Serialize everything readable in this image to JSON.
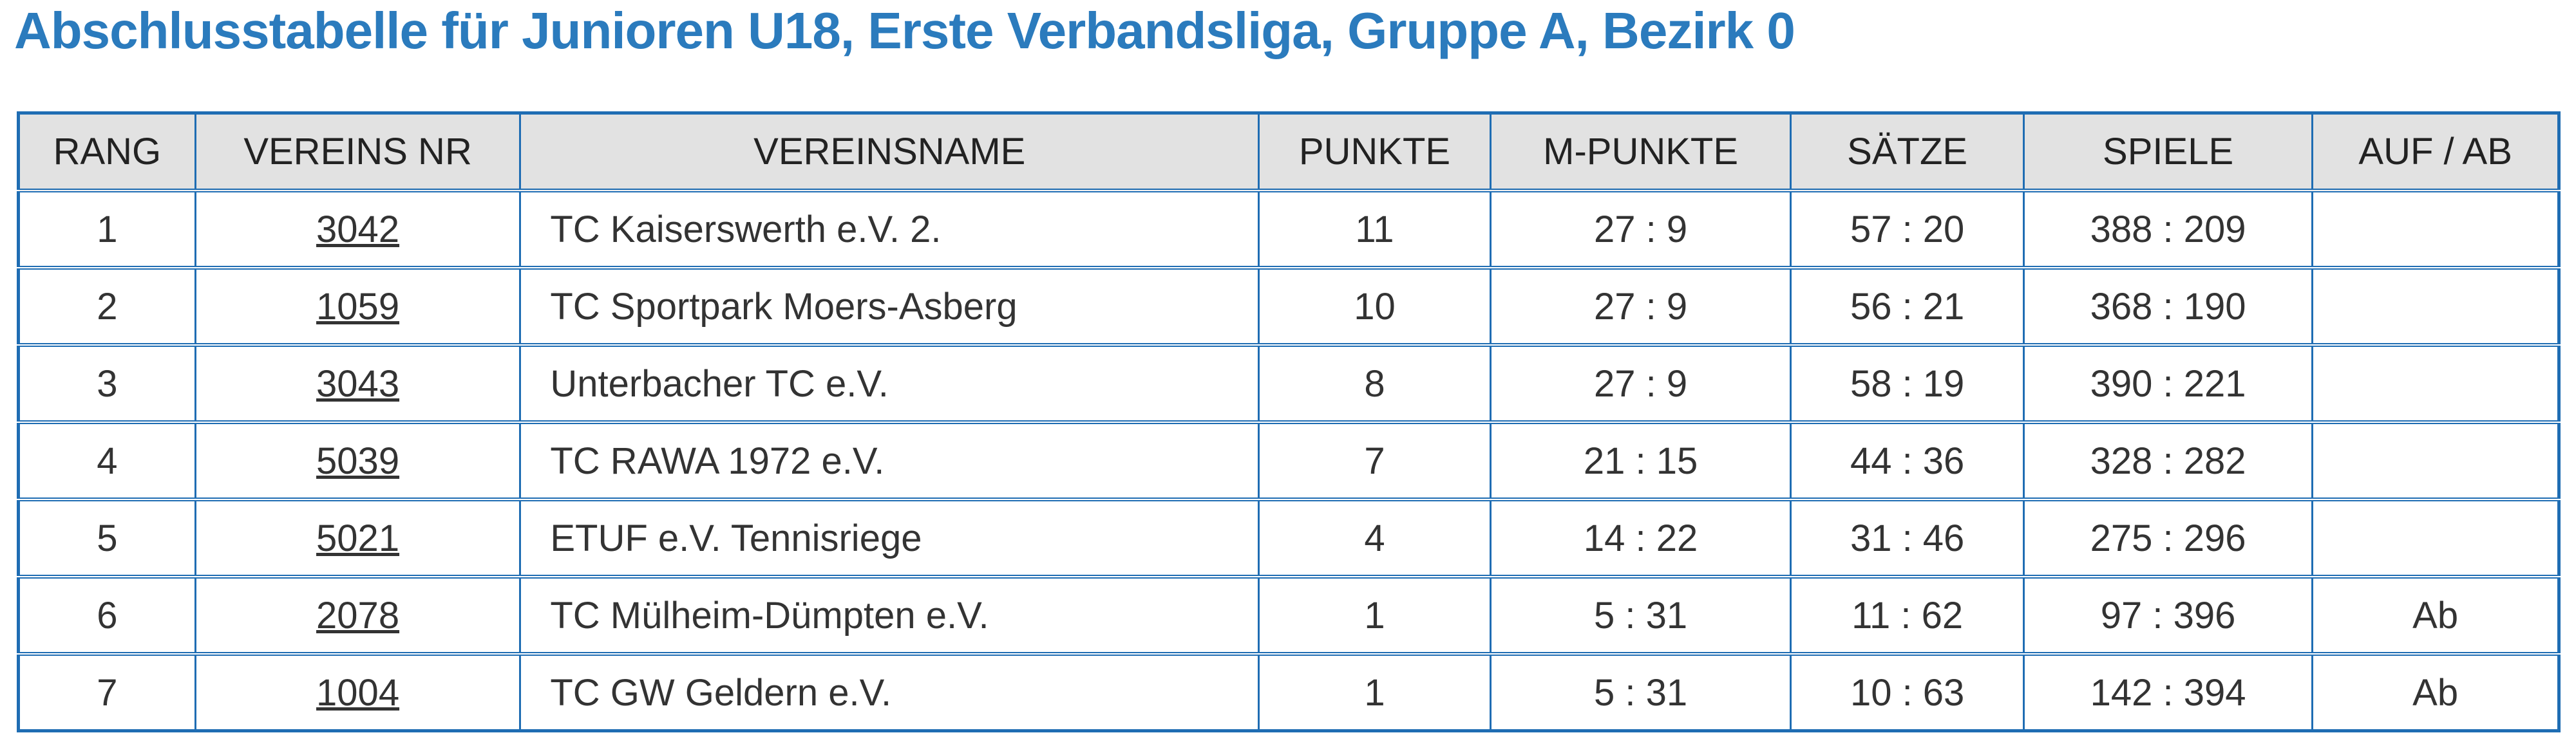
{
  "title": "Abschlusstabelle für Junioren U18, Erste Verbandsliga, Gruppe A, Bezirk 0",
  "columns": [
    "RANG",
    "VEREINS NR",
    "VEREINSNAME",
    "PUNKTE",
    "M-PUNKTE",
    "SÄTZE",
    "SPIELE",
    "AUF / AB"
  ],
  "rows": [
    {
      "rang": "1",
      "nr": "3042",
      "name": "TC Kaiserswerth e.V. 2.",
      "punkte": "11",
      "mpunkte": "27 : 9",
      "saetze": "57 : 20",
      "spiele": "388 : 209",
      "aufab": ""
    },
    {
      "rang": "2",
      "nr": "1059",
      "name": "TC Sportpark Moers-Asberg",
      "punkte": "10",
      "mpunkte": "27 : 9",
      "saetze": "56 : 21",
      "spiele": "368 : 190",
      "aufab": ""
    },
    {
      "rang": "3",
      "nr": "3043",
      "name": "Unterbacher TC e.V.",
      "punkte": "8",
      "mpunkte": "27 : 9",
      "saetze": "58 : 19",
      "spiele": "390 : 221",
      "aufab": ""
    },
    {
      "rang": "4",
      "nr": "5039",
      "name": "TC RAWA 1972 e.V.",
      "punkte": "7",
      "mpunkte": "21 : 15",
      "saetze": "44 : 36",
      "spiele": "328 : 282",
      "aufab": ""
    },
    {
      "rang": "5",
      "nr": "5021",
      "name": "ETUF e.V. Tennisriege",
      "punkte": "4",
      "mpunkte": "14 : 22",
      "saetze": "31 : 46",
      "spiele": "275 : 296",
      "aufab": ""
    },
    {
      "rang": "6",
      "nr": "2078",
      "name": "TC Mülheim-Dümpten e.V.",
      "punkte": "1",
      "mpunkte": "5 : 31",
      "saetze": "11 : 62",
      "spiele": "97 : 396",
      "aufab": "Ab"
    },
    {
      "rang": "7",
      "nr": "1004",
      "name": "TC GW Geldern e.V.",
      "punkte": "1",
      "mpunkte": "5 : 31",
      "saetze": "10 : 63",
      "spiele": "142 : 394",
      "aufab": "Ab"
    }
  ]
}
